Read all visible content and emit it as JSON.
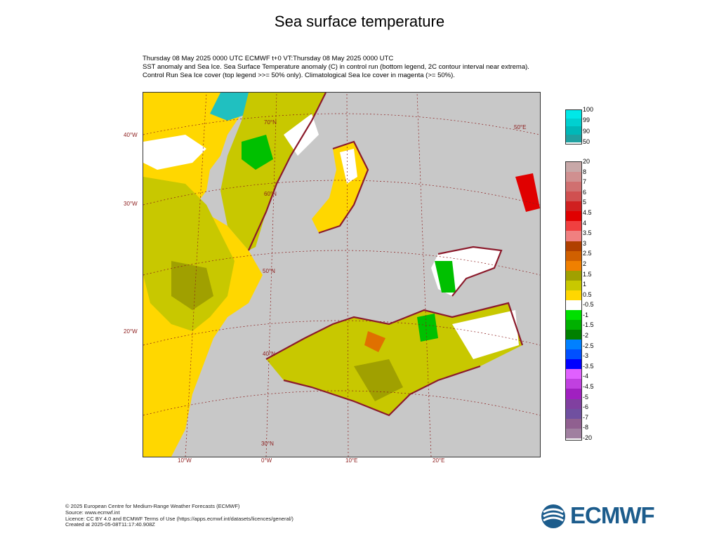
{
  "title": "Sea surface temperature",
  "subtitle": {
    "line1": "Thursday 08 May 2025 0000 UTC  ECMWF  t+0  VT:Thursday 08 May 2025 0000 UTC",
    "line2": "SST anomaly and Sea Ice. Sea Surface Temperature anomaly (C) in control run (bottom legend, 2C contour interval near extrema).",
    "line3": "Control Run Sea Ice cover (top legend >>= 50% only). Climatological Sea Ice cover in magenta (>= 50%)."
  },
  "map": {
    "longitude_labels": [
      "10°W",
      "0°W",
      "10°E",
      "20°E"
    ],
    "latitude_labels": [
      "40°W",
      "30°W",
      "20°W"
    ],
    "grid_labels": [
      "70°N",
      "60°N",
      "50°N",
      "40°N",
      "30°N",
      "50°E"
    ],
    "colors": {
      "land": "#c8c8c8",
      "coast": "#8b1a2b",
      "sea_neutral": "#ffffff",
      "sea_warm_light": "#ffd700",
      "sea_warm_mid": "#c8c800",
      "sea_warm_dark": "#a0a000",
      "sea_orange": "#e07000",
      "sea_green": "#00c000",
      "ice_cyan": "#20c0c0"
    }
  },
  "legend_ice": {
    "labels": [
      "100",
      "99",
      "90",
      "50"
    ],
    "colors": [
      "#00e8e8",
      "#00d0d0",
      "#00b8b8",
      "#20a0a0"
    ]
  },
  "legend_sst": {
    "labels": [
      "20",
      "8",
      "7",
      "6",
      "5",
      "4.5",
      "4",
      "3.5",
      "3",
      "2.5",
      "2",
      "1.5",
      "1",
      "0.5",
      "-0.5",
      "-1",
      "-1.5",
      "-2",
      "-2.5",
      "-3",
      "-3.5",
      "-4",
      "-4.5",
      "-5",
      "-6",
      "-7",
      "-8",
      "-20"
    ],
    "colors": [
      "#c8a8a8",
      "#d09090",
      "#d07070",
      "#d05050",
      "#d02020",
      "#e00000",
      "#f04040",
      "#f08080",
      "#b04000",
      "#d06000",
      "#f08000",
      "#a0a000",
      "#c8c800",
      "#ffd700",
      "#ffffff",
      "#00e000",
      "#00b000",
      "#008000",
      "#0080ff",
      "#0050ff",
      "#0000ff",
      "#e060ff",
      "#c040e0",
      "#a020c0",
      "#8040a0",
      "#7050a0",
      "#906090",
      "#a080a0"
    ]
  },
  "footer": {
    "line1": "© 2025 European Centre for Medium-Range Weather Forecasts (ECMWF)",
    "line2": "Source: www.ecmwf.int",
    "line3": "Licence: CC BY 4.0 and ECMWF Terms of Use (https://apps.ecmwf.int/datasets/licences/general/)",
    "line4": "Created at 2025-05-08T11:17:40.908Z"
  },
  "logo": {
    "text": "ECMWF",
    "color": "#1c5c8c"
  }
}
